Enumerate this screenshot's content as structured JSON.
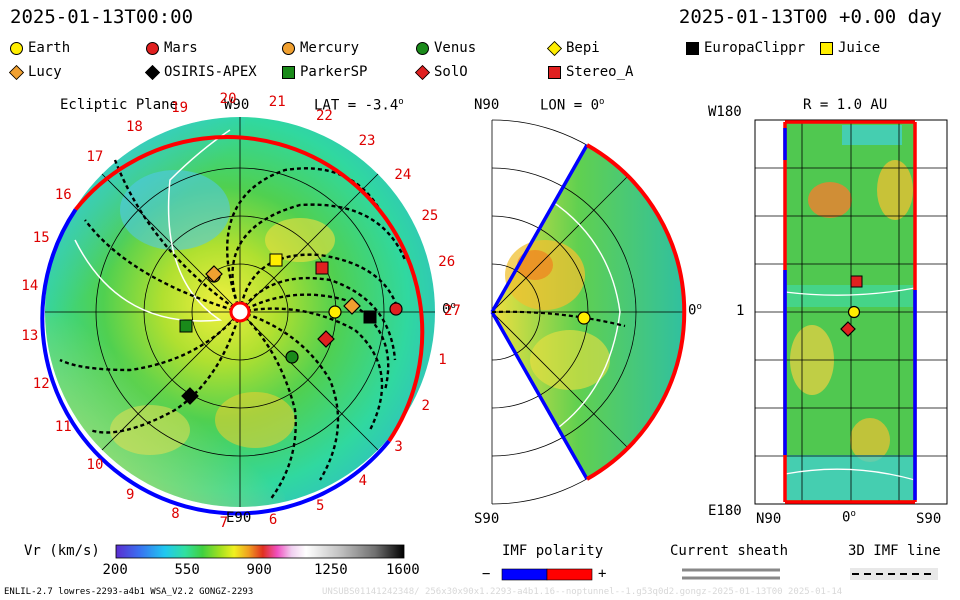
{
  "header": {
    "left_time": "2025-01-13T00:00",
    "right_time": "2025-01-13T00 +0.00 day"
  },
  "legend": [
    {
      "name": "Earth",
      "shape": "circle",
      "color": "#ffee00"
    },
    {
      "name": "Mars",
      "shape": "circle",
      "color": "#e02020"
    },
    {
      "name": "Mercury",
      "shape": "circle",
      "color": "#f0a030"
    },
    {
      "name": "Venus",
      "shape": "circle",
      "color": "#1a8a1a"
    },
    {
      "name": "Bepi",
      "shape": "diamond",
      "color": "#ffee00"
    },
    {
      "name": "EuropaClippr",
      "shape": "square",
      "color": "#000000"
    },
    {
      "name": "Juice",
      "shape": "square",
      "color": "#ffee00"
    },
    {
      "name": "Lucy",
      "shape": "diamond",
      "color": "#f0a030"
    },
    {
      "name": "OSIRIS-APEX",
      "shape": "diamond",
      "color": "#000000"
    },
    {
      "name": "ParkerSP",
      "shape": "square",
      "color": "#1a8a1a"
    },
    {
      "name": "SolO",
      "shape": "diamond",
      "color": "#e02020"
    },
    {
      "name": "Stereo_A",
      "shape": "square",
      "color": "#e02020"
    }
  ],
  "ecliptic": {
    "title": "Ecliptic Plane",
    "w90": "W90",
    "e90": "E90",
    "lat": "LAT = -3.4",
    "lat_deg": "o",
    "zero": "0",
    "zero_deg": "o",
    "carrington_labels": [
      "1",
      "2",
      "3",
      "4",
      "5",
      "6",
      "7",
      "8",
      "9",
      "10",
      "11",
      "12",
      "13",
      "14",
      "15",
      "16",
      "17",
      "18",
      "19",
      "20",
      "21",
      "22",
      "23",
      "24",
      "25",
      "26",
      "27"
    ]
  },
  "meridional": {
    "n90": "N90",
    "s90": "S90",
    "lon": "LON = 0",
    "lon_deg": "o",
    "zero": "0",
    "zero_deg": "o"
  },
  "latlon": {
    "r": "R = 1.0 AU",
    "w180": "W180",
    "e180": "E180",
    "one": "1",
    "n90": "N90",
    "s90": "S90",
    "zero": "0",
    "zero_deg": "o"
  },
  "colorbar": {
    "label": "Vr (km/s)",
    "ticks": [
      "200",
      "550",
      "900",
      "1250",
      "1600"
    ],
    "colors": [
      "#5b2dd0",
      "#3a6ff0",
      "#20c8f0",
      "#30e0a0",
      "#40d040",
      "#a0e020",
      "#f0f020",
      "#f0a020",
      "#e03020",
      "#f050c0",
      "#f0d0f0",
      "#ffffff",
      "#c0c0c0",
      "#808080",
      "#404040",
      "#000000"
    ]
  },
  "imf": {
    "label": "IMF polarity",
    "minus": "−",
    "plus": "+",
    "neg_color": "#0000ff",
    "pos_color": "#ff0000"
  },
  "sheath": {
    "label": "Current sheath"
  },
  "imfline": {
    "label": "3D IMF line"
  },
  "footer": {
    "left": "ENLIL-2.7 lowres-2293-a4b1 WSA_V2.2 GONGZ-2293",
    "right": "UNSUBS01141242348/ 256x30x90x1.2293-a4b1.16--noptunnel--1.g53q0d2.gongz-2025-01-13T00   2025-01-14"
  }
}
